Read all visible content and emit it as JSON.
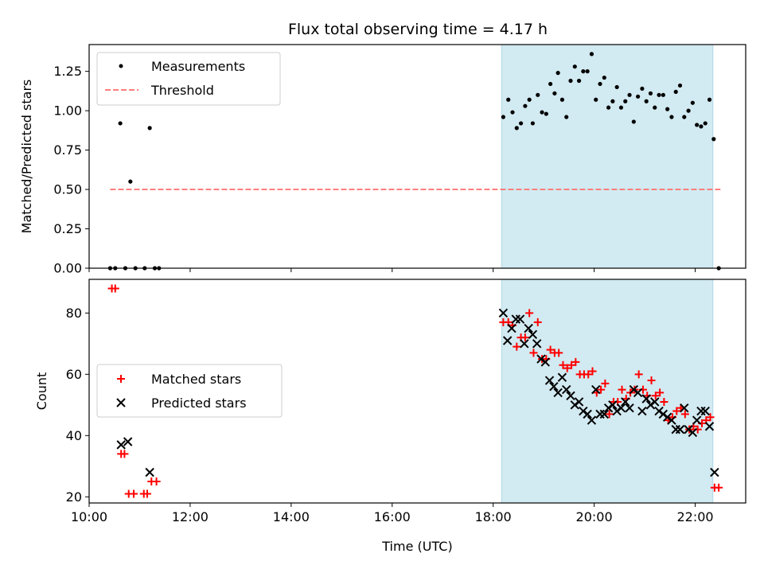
{
  "chart_data": [
    {
      "type": "scatter",
      "title": "Flux total observing time = 4.17 h",
      "ylabel": "Matched/Predicted stars",
      "xlabel": "",
      "xlim": [
        "10:00",
        "23:00"
      ],
      "ylim": [
        0,
        1.42
      ],
      "x_ticks": [
        "10:00",
        "12:00",
        "14:00",
        "16:00",
        "18:00",
        "20:00",
        "22:00"
      ],
      "y_ticks": [
        "0.00",
        "0.25",
        "0.50",
        "0.75",
        "1.00",
        "1.25"
      ],
      "legend": {
        "placement": "top-left",
        "entries": [
          "Measurements",
          "Threshold"
        ]
      },
      "shaded_interval": {
        "start": "18:10",
        "end": "22:21",
        "color": "#add8e6"
      },
      "threshold": {
        "name": "Threshold",
        "value": 0.5,
        "x_start": "10:25",
        "x_end": "22:30",
        "color": "#ff7f7f"
      },
      "series": [
        {
          "name": "Measurements",
          "color": "#000000",
          "points": [
            [
              "10:25",
              0.0
            ],
            [
              "10:31",
              0.0
            ],
            [
              "10:37",
              0.92
            ],
            [
              "10:43",
              0.0
            ],
            [
              "10:49",
              0.55
            ],
            [
              "10:55",
              0.0
            ],
            [
              "11:06",
              0.0
            ],
            [
              "11:12",
              0.89
            ],
            [
              "11:18",
              0.0
            ],
            [
              "11:23",
              0.0
            ],
            [
              "18:12",
              0.96
            ],
            [
              "18:18",
              1.07
            ],
            [
              "18:23",
              0.99
            ],
            [
              "18:28",
              0.89
            ],
            [
              "18:33",
              0.92
            ],
            [
              "18:38",
              1.03
            ],
            [
              "18:43",
              1.07
            ],
            [
              "18:47",
              0.92
            ],
            [
              "18:53",
              1.1
            ],
            [
              "18:58",
              0.99
            ],
            [
              "19:03",
              0.98
            ],
            [
              "19:08",
              1.17
            ],
            [
              "19:13",
              1.11
            ],
            [
              "19:17",
              1.24
            ],
            [
              "19:22",
              1.07
            ],
            [
              "19:27",
              0.96
            ],
            [
              "19:32",
              1.19
            ],
            [
              "19:37",
              1.28
            ],
            [
              "19:42",
              1.19
            ],
            [
              "19:47",
              1.25
            ],
            [
              "19:52",
              1.25
            ],
            [
              "19:57",
              1.36
            ],
            [
              "20:02",
              1.07
            ],
            [
              "20:07",
              1.17
            ],
            [
              "20:12",
              1.21
            ],
            [
              "20:17",
              1.02
            ],
            [
              "20:22",
              1.06
            ],
            [
              "20:27",
              1.15
            ],
            [
              "20:32",
              1.02
            ],
            [
              "20:37",
              1.06
            ],
            [
              "20:42",
              1.1
            ],
            [
              "20:47",
              0.93
            ],
            [
              "20:52",
              1.09
            ],
            [
              "20:57",
              1.14
            ],
            [
              "21:02",
              1.06
            ],
            [
              "21:07",
              1.11
            ],
            [
              "21:12",
              1.02
            ],
            [
              "21:17",
              1.1
            ],
            [
              "21:22",
              1.1
            ],
            [
              "21:27",
              1.01
            ],
            [
              "21:32",
              0.96
            ],
            [
              "21:37",
              1.12
            ],
            [
              "21:42",
              1.16
            ],
            [
              "21:47",
              0.96
            ],
            [
              "21:52",
              1.0
            ],
            [
              "21:57",
              1.05
            ],
            [
              "22:02",
              0.91
            ],
            [
              "22:07",
              0.9
            ],
            [
              "22:12",
              0.92
            ],
            [
              "22:17",
              1.07
            ],
            [
              "22:22",
              0.82
            ],
            [
              "22:28",
              0.0
            ]
          ]
        }
      ]
    },
    {
      "type": "scatter",
      "title": "",
      "ylabel": "Count",
      "xlabel": "Time (UTC)",
      "xlim": [
        "10:00",
        "23:00"
      ],
      "ylim": [
        18,
        91
      ],
      "x_ticks": [
        "10:00",
        "12:00",
        "14:00",
        "16:00",
        "18:00",
        "20:00",
        "22:00"
      ],
      "y_ticks": [
        "20",
        "40",
        "60",
        "80"
      ],
      "legend": {
        "placement": "center-left",
        "entries": [
          "Matched stars",
          "Predicted stars"
        ]
      },
      "shaded_interval": {
        "start": "18:10",
        "end": "22:21",
        "color": "#add8e6"
      },
      "series": [
        {
          "name": "Matched stars",
          "marker": "+",
          "color": "#ff0000",
          "points": [
            [
              "10:27",
              88
            ],
            [
              "10:31",
              88
            ],
            [
              "10:38",
              34
            ],
            [
              "10:42",
              34
            ],
            [
              "10:47",
              21
            ],
            [
              "10:53",
              21
            ],
            [
              "11:05",
              21
            ],
            [
              "11:09",
              21
            ],
            [
              "11:14",
              25
            ],
            [
              "11:20",
              25
            ],
            [
              "18:12",
              77
            ],
            [
              "18:18",
              77
            ],
            [
              "18:23",
              76
            ],
            [
              "18:28",
              69
            ],
            [
              "18:33",
              72
            ],
            [
              "18:38",
              72
            ],
            [
              "18:43",
              80
            ],
            [
              "18:48",
              67
            ],
            [
              "18:53",
              77
            ],
            [
              "18:58",
              65
            ],
            [
              "19:03",
              65
            ],
            [
              "19:08",
              68
            ],
            [
              "19:13",
              67
            ],
            [
              "19:18",
              67
            ],
            [
              "19:23",
              63
            ],
            [
              "19:28",
              62
            ],
            [
              "19:33",
              63
            ],
            [
              "19:38",
              64
            ],
            [
              "19:43",
              60
            ],
            [
              "19:48",
              60
            ],
            [
              "19:53",
              60
            ],
            [
              "19:58",
              61
            ],
            [
              "20:03",
              54
            ],
            [
              "20:08",
              55
            ],
            [
              "20:13",
              57
            ],
            [
              "20:18",
              47
            ],
            [
              "20:23",
              51
            ],
            [
              "20:28",
              51
            ],
            [
              "20:33",
              55
            ],
            [
              "20:38",
              52
            ],
            [
              "20:43",
              54
            ],
            [
              "20:48",
              55
            ],
            [
              "20:53",
              60
            ],
            [
              "20:58",
              55
            ],
            [
              "21:03",
              53
            ],
            [
              "21:08",
              58
            ],
            [
              "21:13",
              53
            ],
            [
              "21:18",
              54
            ],
            [
              "21:23",
              51
            ],
            [
              "21:28",
              45
            ],
            [
              "21:33",
              46
            ],
            [
              "21:38",
              48
            ],
            [
              "21:43",
              49
            ],
            [
              "21:48",
              47
            ],
            [
              "21:53",
              42
            ],
            [
              "21:58",
              43
            ],
            [
              "22:03",
              42
            ],
            [
              "22:08",
              44
            ],
            [
              "22:13",
              45
            ],
            [
              "22:18",
              46
            ],
            [
              "22:23",
              23
            ],
            [
              "22:28",
              23
            ]
          ]
        },
        {
          "name": "Predicted stars",
          "marker": "x",
          "color": "#000000",
          "points": [
            [
              "10:38",
              37
            ],
            [
              "10:46",
              38
            ],
            [
              "11:12",
              28
            ],
            [
              "18:12",
              80
            ],
            [
              "18:17",
              71
            ],
            [
              "18:22",
              75
            ],
            [
              "18:27",
              78
            ],
            [
              "18:32",
              78
            ],
            [
              "18:37",
              70
            ],
            [
              "18:42",
              75
            ],
            [
              "18:47",
              73
            ],
            [
              "18:52",
              70
            ],
            [
              "18:57",
              65
            ],
            [
              "19:02",
              64
            ],
            [
              "19:07",
              58
            ],
            [
              "19:12",
              56
            ],
            [
              "19:17",
              54
            ],
            [
              "19:22",
              59
            ],
            [
              "19:27",
              55
            ],
            [
              "19:32",
              53
            ],
            [
              "19:37",
              50
            ],
            [
              "19:42",
              51
            ],
            [
              "19:47",
              48
            ],
            [
              "19:52",
              47
            ],
            [
              "19:57",
              45
            ],
            [
              "20:02",
              55
            ],
            [
              "20:07",
              47
            ],
            [
              "20:12",
              47
            ],
            [
              "20:17",
              49
            ],
            [
              "20:22",
              50
            ],
            [
              "20:27",
              48
            ],
            [
              "20:32",
              49
            ],
            [
              "20:37",
              51
            ],
            [
              "20:42",
              49
            ],
            [
              "20:47",
              55
            ],
            [
              "20:52",
              54
            ],
            [
              "20:57",
              48
            ],
            [
              "21:02",
              52
            ],
            [
              "21:07",
              50
            ],
            [
              "21:12",
              51
            ],
            [
              "21:17",
              48
            ],
            [
              "21:22",
              47
            ],
            [
              "21:27",
              46
            ],
            [
              "21:32",
              45
            ],
            [
              "21:37",
              42
            ],
            [
              "21:42",
              42
            ],
            [
              "21:47",
              49
            ],
            [
              "21:52",
              42
            ],
            [
              "21:57",
              41
            ],
            [
              "22:02",
              45
            ],
            [
              "22:07",
              48
            ],
            [
              "22:12",
              48
            ],
            [
              "22:17",
              43
            ],
            [
              "22:23",
              28
            ]
          ]
        }
      ]
    }
  ]
}
